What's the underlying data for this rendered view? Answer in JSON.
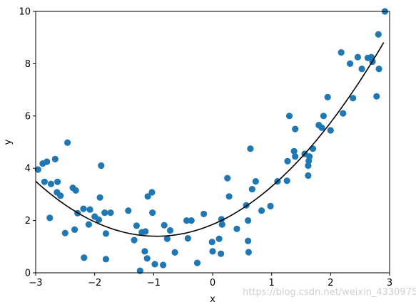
{
  "chart_data": {
    "type": "scatter",
    "xlabel": "x",
    "ylabel": "y",
    "xlim": [
      -3,
      3
    ],
    "ylim": [
      0,
      10
    ],
    "xticks": [
      -3,
      -2,
      -1,
      0,
      1,
      2,
      3
    ],
    "yticks": [
      0,
      2,
      4,
      6,
      8,
      10
    ],
    "grid": false,
    "point_color": "#1f77b4",
    "line_color": "#000000",
    "points": [
      [
        -2.96,
        3.95
      ],
      [
        -2.88,
        4.18
      ],
      [
        -2.85,
        3.48
      ],
      [
        -2.81,
        4.25
      ],
      [
        -2.76,
        2.1
      ],
      [
        -2.74,
        3.4
      ],
      [
        -2.67,
        4.35
      ],
      [
        -2.64,
        3.08
      ],
      [
        -2.63,
        3.48
      ],
      [
        -2.58,
        2.95
      ],
      [
        -2.5,
        1.52
      ],
      [
        -2.46,
        4.98
      ],
      [
        -2.37,
        3.25
      ],
      [
        -2.34,
        1.65
      ],
      [
        -2.32,
        3.15
      ],
      [
        -2.29,
        2.28
      ],
      [
        -2.19,
        2.45
      ],
      [
        -2.18,
        0.58
      ],
      [
        -2.1,
        1.85
      ],
      [
        -2.08,
        2.42
      ],
      [
        -2.0,
        2.15
      ],
      [
        -1.93,
        2.03
      ],
      [
        -1.91,
        2.88
      ],
      [
        -1.89,
        4.1
      ],
      [
        -1.83,
        2.3
      ],
      [
        -1.81,
        1.5
      ],
      [
        -1.81,
        0.52
      ],
      [
        -1.73,
        2.3
      ],
      [
        -1.43,
        2.38
      ],
      [
        -1.33,
        1.25
      ],
      [
        -1.29,
        1.8
      ],
      [
        -1.23,
        0.08
      ],
      [
        -1.2,
        1.55
      ],
      [
        -1.15,
        0.82
      ],
      [
        -1.14,
        1.58
      ],
      [
        -1.11,
        0.55
      ],
      [
        -1.1,
        2.92
      ],
      [
        -1.03,
        3.08
      ],
      [
        -1.02,
        2.3
      ],
      [
        -0.98,
        0.33
      ],
      [
        -0.84,
        0.3
      ],
      [
        -0.82,
        1.82
      ],
      [
        -0.77,
        1.3
      ],
      [
        -0.72,
        1.62
      ],
      [
        -0.64,
        0.78
      ],
      [
        -0.44,
        2.0
      ],
      [
        -0.42,
        1.32
      ],
      [
        -0.36,
        2.0
      ],
      [
        -0.26,
        0.38
      ],
      [
        -0.15,
        2.25
      ],
      [
        -0.01,
        1.18
      ],
      [
        0.0,
        0.82
      ],
      [
        0.11,
        1.3
      ],
      [
        0.14,
        0.73
      ],
      [
        0.15,
        2.05
      ],
      [
        0.16,
        1.85
      ],
      [
        0.25,
        3.62
      ],
      [
        0.28,
        2.92
      ],
      [
        0.41,
        1.68
      ],
      [
        0.57,
        2.58
      ],
      [
        0.6,
        2.0
      ],
      [
        0.6,
        1.22
      ],
      [
        0.61,
        0.79
      ],
      [
        0.64,
        4.75
      ],
      [
        0.67,
        3.2
      ],
      [
        0.73,
        3.5
      ],
      [
        0.83,
        2.38
      ],
      [
        0.98,
        2.55
      ],
      [
        1.1,
        3.5
      ],
      [
        1.26,
        3.52
      ],
      [
        1.27,
        4.27
      ],
      [
        1.3,
        6.0
      ],
      [
        1.38,
        4.65
      ],
      [
        1.4,
        4.45
      ],
      [
        1.4,
        5.5
      ],
      [
        1.56,
        4.55
      ],
      [
        1.62,
        3.72
      ],
      [
        1.62,
        4.1
      ],
      [
        1.63,
        4.28
      ],
      [
        1.64,
        4.45
      ],
      [
        1.7,
        4.75
      ],
      [
        1.8,
        5.65
      ],
      [
        1.85,
        5.55
      ],
      [
        1.88,
        6.0
      ],
      [
        1.95,
        6.72
      ],
      [
        2.0,
        5.45
      ],
      [
        2.18,
        8.43
      ],
      [
        2.21,
        6.1
      ],
      [
        2.33,
        8.0
      ],
      [
        2.38,
        6.68
      ],
      [
        2.46,
        8.25
      ],
      [
        2.53,
        7.8
      ],
      [
        2.63,
        8.22
      ],
      [
        2.69,
        8.25
      ],
      [
        2.71,
        8.08
      ],
      [
        2.78,
        6.75
      ],
      [
        2.81,
        9.12
      ],
      [
        2.82,
        7.8
      ],
      [
        2.92,
        10.0
      ]
    ],
    "fit_curve": {
      "a": 0.5,
      "b": 0.95,
      "c": 1.85,
      "x_range": [
        -3,
        2.9
      ]
    }
  },
  "watermark": "https://blog.csdn.net/weixin_43309755"
}
